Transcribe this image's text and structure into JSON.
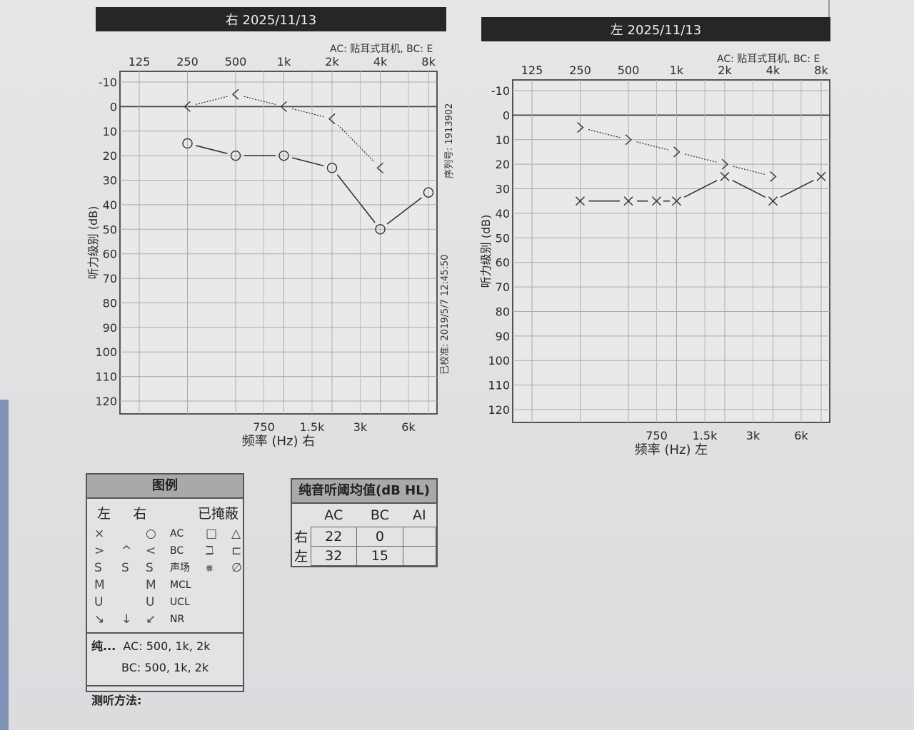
{
  "right_header": "右 2025/11/13",
  "left_header": "左 2025/11/13",
  "ac_note": "AC: 贴耳式耳机, BC: E",
  "serial": "序列号: 1913902",
  "calibrated": "已校准: 2019/5/7 12:45:50",
  "legend": {
    "title": "图例",
    "col_left": "左",
    "col_right": "右",
    "col_masked": "已掩蔽",
    "rows": [
      [
        "×",
        "",
        "○",
        "AC",
        "□",
        "△"
      ],
      [
        ">",
        "^",
        "<",
        "BC",
        "ℶ",
        "⊏"
      ],
      [
        "S",
        "S",
        "S",
        "声场",
        "⨳",
        "∅"
      ],
      [
        "M",
        "",
        "M",
        "MCL",
        "",
        ""
      ],
      [
        "U",
        "",
        "U",
        "UCL",
        "",
        ""
      ],
      [
        "↘",
        "↓",
        "↙",
        "NR",
        "",
        ""
      ]
    ],
    "pta_label": "纯...",
    "pta_ac": "AC: 500, 1k, 2k",
    "pta_bc": "BC: 500, 1k, 2k",
    "method": "测听方法:"
  },
  "pta_table": {
    "title": "纯音听阈均值(dB HL)",
    "cols": [
      "AC",
      "BC",
      "AI"
    ],
    "rows": [
      {
        "ear": "右",
        "ac": "22",
        "bc": "0",
        "ai": ""
      },
      {
        "ear": "左",
        "ac": "32",
        "bc": "15",
        "ai": ""
      }
    ]
  },
  "chart_data": [
    {
      "type": "line",
      "title": "右 2025/11/13",
      "xlabel": "频率 (Hz) 右",
      "ylabel": "听力级别 (dB)",
      "x_scale": "log2",
      "top_ticks": [
        {
          "f": 125,
          "label": "125"
        },
        {
          "f": 250,
          "label": "250"
        },
        {
          "f": 500,
          "label": "500"
        },
        {
          "f": 1000,
          "label": "1k"
        },
        {
          "f": 2000,
          "label": "2k"
        },
        {
          "f": 4000,
          "label": "4k"
        },
        {
          "f": 8000,
          "label": "8k"
        }
      ],
      "bottom_ticks": [
        {
          "f": 750,
          "label": "750"
        },
        {
          "f": 1500,
          "label": "1.5k"
        },
        {
          "f": 3000,
          "label": "3k"
        },
        {
          "f": 6000,
          "label": "6k"
        }
      ],
      "ylim": [
        -10,
        120
      ],
      "y_ticks": [
        -10,
        0,
        10,
        20,
        30,
        40,
        50,
        60,
        70,
        80,
        90,
        100,
        110,
        120
      ],
      "y_inverted": true,
      "series": [
        {
          "name": "AC",
          "marker": "circle",
          "line": "solid",
          "x": [
            250,
            500,
            1000,
            2000,
            4000,
            8000
          ],
          "y": [
            15,
            20,
            20,
            25,
            50,
            35
          ]
        },
        {
          "name": "BC",
          "marker": "lt",
          "line": "dotted",
          "x": [
            250,
            500,
            1000,
            2000,
            4000
          ],
          "y": [
            0,
            -5,
            0,
            5,
            25
          ]
        }
      ]
    },
    {
      "type": "line",
      "title": "左 2025/11/13",
      "xlabel": "频率 (Hz) 左",
      "ylabel": "听力级别 (dB)",
      "x_scale": "log2",
      "top_ticks": [
        {
          "f": 125,
          "label": "125"
        },
        {
          "f": 250,
          "label": "250"
        },
        {
          "f": 500,
          "label": "500"
        },
        {
          "f": 1000,
          "label": "1k"
        },
        {
          "f": 2000,
          "label": "2k"
        },
        {
          "f": 4000,
          "label": "4k"
        },
        {
          "f": 8000,
          "label": "8k"
        }
      ],
      "bottom_ticks": [
        {
          "f": 750,
          "label": "750"
        },
        {
          "f": 1500,
          "label": "1.5k"
        },
        {
          "f": 3000,
          "label": "3k"
        },
        {
          "f": 6000,
          "label": "6k"
        }
      ],
      "ylim": [
        -10,
        120
      ],
      "y_ticks": [
        -10,
        0,
        10,
        20,
        30,
        40,
        50,
        60,
        70,
        80,
        90,
        100,
        110,
        120
      ],
      "y_inverted": true,
      "series": [
        {
          "name": "AC",
          "marker": "x",
          "line": "solid",
          "x": [
            250,
            500,
            750,
            1000,
            2000,
            4000,
            8000
          ],
          "y": [
            35,
            35,
            35,
            35,
            25,
            35,
            25
          ]
        },
        {
          "name": "BC",
          "marker": "gt",
          "line": "dotted",
          "x": [
            250,
            500,
            1000,
            2000,
            4000
          ],
          "y": [
            5,
            10,
            15,
            20,
            25
          ]
        }
      ]
    }
  ]
}
